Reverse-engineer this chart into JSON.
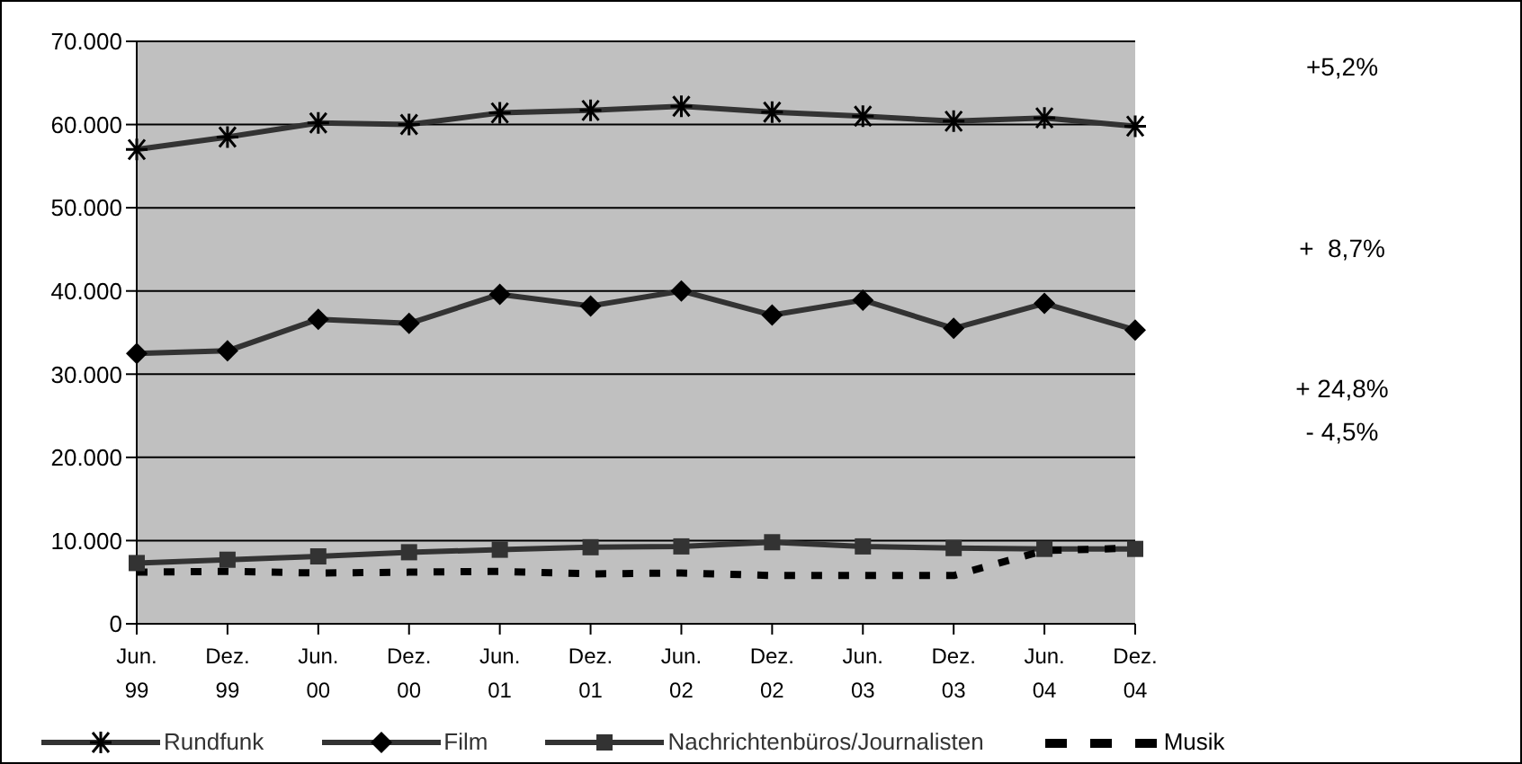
{
  "chart_data": {
    "type": "line",
    "categories": [
      "Jun. 99",
      "Dez. 99",
      "Jun. 00",
      "Dez. 00",
      "Jun. 01",
      "Dez. 01",
      "Jun. 02",
      "Dez. 02",
      "Jun. 03",
      "Dez. 03",
      "Jun. 04",
      "Dez. 04"
    ],
    "series": [
      {
        "name": "Rundfunk",
        "color": "#333333",
        "marker": "cross",
        "line_style": "solid",
        "values": [
          57000,
          58500,
          60200,
          60000,
          61400,
          61700,
          62200,
          61500,
          61000,
          60400,
          60800,
          59800
        ]
      },
      {
        "name": "Film",
        "color": "#333333",
        "marker": "diamond",
        "line_style": "solid",
        "values": [
          32500,
          32800,
          36600,
          36100,
          39600,
          38200,
          40000,
          37100,
          38900,
          35500,
          38500,
          35300
        ]
      },
      {
        "name": "Nachrichtenbüros/Journalisten",
        "color": "#333333",
        "marker": "square",
        "line_style": "solid",
        "values": [
          7300,
          7700,
          8100,
          8600,
          8900,
          9200,
          9300,
          9800,
          9300,
          9100,
          9000,
          9000
        ]
      },
      {
        "name": "Musik",
        "color": "#000000",
        "marker": "none",
        "line_style": "dashed",
        "values": [
          6200,
          6300,
          6100,
          6200,
          6300,
          6000,
          6100,
          5800,
          5800,
          5800,
          8800,
          9100
        ]
      }
    ],
    "ylim": [
      0,
      70000
    ],
    "yticks": [
      {
        "value": 0,
        "label": "0"
      },
      {
        "value": 10000,
        "label": "10.000"
      },
      {
        "value": 20000,
        "label": "20.000"
      },
      {
        "value": 30000,
        "label": "30.000"
      },
      {
        "value": 40000,
        "label": "40.000"
      },
      {
        "value": 50000,
        "label": "50.000"
      },
      {
        "value": 60000,
        "label": "60.000"
      },
      {
        "value": 70000,
        "label": "70.000"
      }
    ],
    "grid": "y",
    "legend": "bottom",
    "annotations": [
      "+5,2%",
      "+  8,7%",
      "+ 24,8%",
      "- 4,5%"
    ]
  }
}
